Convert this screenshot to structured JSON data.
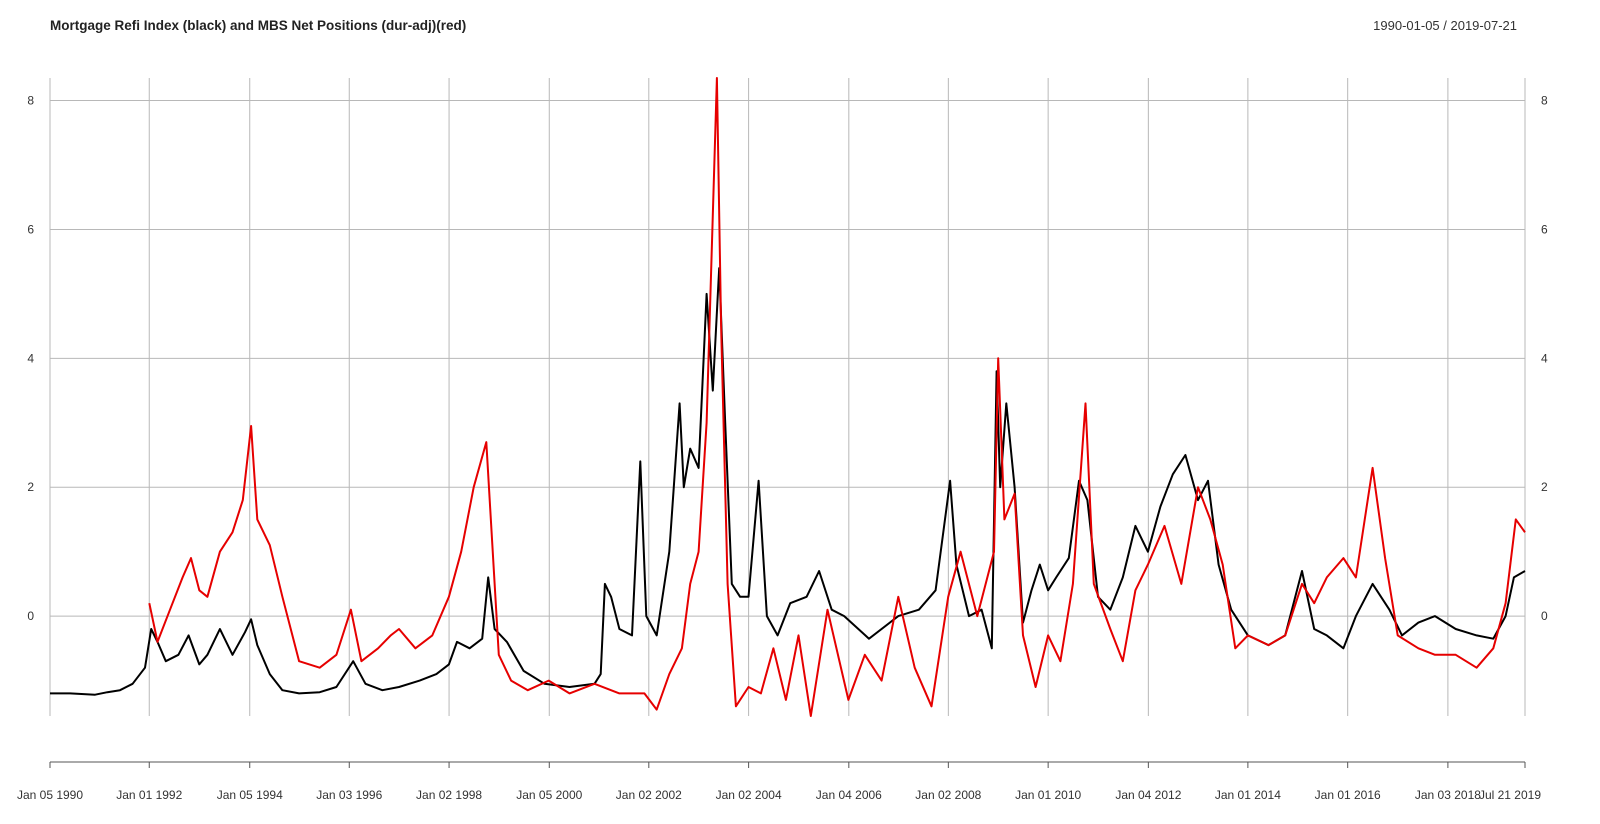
{
  "chart_data": {
    "type": "line",
    "title": "Mortgage Refi Index (black) and MBS Net Positions (dur-adj)(red)",
    "date_range_label": "1990-01-05 / 2019-07-21",
    "xlabel": "",
    "ylabel": "",
    "ylim": [
      -1.55,
      8.35
    ],
    "y_ticks": [
      0,
      2,
      4,
      6,
      8
    ],
    "y_tick_labels": [
      "0",
      "2",
      "4",
      "6",
      "8"
    ],
    "x_range": [
      "1990-01-05",
      "2019-07-21"
    ],
    "x_tick_dates": [
      "1990-01-05",
      "1992-01-01",
      "1994-01-05",
      "1996-01-03",
      "1998-01-02",
      "2000-01-05",
      "2002-01-02",
      "2004-01-02",
      "2006-01-04",
      "2008-01-02",
      "2010-01-01",
      "2012-01-04",
      "2014-01-01",
      "2016-01-01",
      "2018-01-03",
      "2019-07-21"
    ],
    "x_tick_labels": [
      "Jan 05 1990",
      "Jan 01 1992",
      "Jan 05 1994",
      "Jan 03 1996",
      "Jan 02 1998",
      "Jan 05 2000",
      "Jan 02 2002",
      "Jan 02 2004",
      "Jan 04 2006",
      "Jan 02 2008",
      "Jan 01 2010",
      "Jan 04 2012",
      "Jan 01 2014",
      "Jan 01 2016",
      "Jan 03 2018",
      "Jul 21 2019"
    ],
    "grid": true,
    "series": [
      {
        "name": "Mortgage Refi Index",
        "color": "#000000",
        "points": [
          [
            "1990-01-05",
            -1.2
          ],
          [
            "1990-06-01",
            -1.2
          ],
          [
            "1990-12-01",
            -1.22
          ],
          [
            "1991-03-01",
            -1.18
          ],
          [
            "1991-06-01",
            -1.15
          ],
          [
            "1991-09-01",
            -1.05
          ],
          [
            "1991-12-01",
            -0.8
          ],
          [
            "1992-01-15",
            -0.2
          ],
          [
            "1992-03-01",
            -0.4
          ],
          [
            "1992-05-01",
            -0.7
          ],
          [
            "1992-08-01",
            -0.6
          ],
          [
            "1992-10-15",
            -0.3
          ],
          [
            "1993-01-01",
            -0.75
          ],
          [
            "1993-03-01",
            -0.6
          ],
          [
            "1993-06-01",
            -0.2
          ],
          [
            "1993-09-01",
            -0.6
          ],
          [
            "1993-12-01",
            -0.25
          ],
          [
            "1994-01-15",
            -0.05
          ],
          [
            "1994-03-01",
            -0.45
          ],
          [
            "1994-06-01",
            -0.9
          ],
          [
            "1994-09-01",
            -1.15
          ],
          [
            "1995-01-01",
            -1.2
          ],
          [
            "1995-06-01",
            -1.18
          ],
          [
            "1995-10-01",
            -1.1
          ],
          [
            "1996-02-01",
            -0.7
          ],
          [
            "1996-05-01",
            -1.05
          ],
          [
            "1996-09-01",
            -1.15
          ],
          [
            "1997-01-01",
            -1.1
          ],
          [
            "1997-06-01",
            -1.0
          ],
          [
            "1997-10-01",
            -0.9
          ],
          [
            "1998-01-01",
            -0.75
          ],
          [
            "1998-03-01",
            -0.4
          ],
          [
            "1998-06-01",
            -0.5
          ],
          [
            "1998-09-01",
            -0.35
          ],
          [
            "1998-10-15",
            0.6
          ],
          [
            "1998-12-01",
            -0.2
          ],
          [
            "1999-03-01",
            -0.4
          ],
          [
            "1999-07-01",
            -0.85
          ],
          [
            "1999-12-01",
            -1.05
          ],
          [
            "2000-06-01",
            -1.1
          ],
          [
            "2000-12-01",
            -1.05
          ],
          [
            "2001-01-15",
            -0.9
          ],
          [
            "2001-02-15",
            0.5
          ],
          [
            "2001-04-01",
            0.3
          ],
          [
            "2001-06-01",
            -0.2
          ],
          [
            "2001-09-01",
            -0.3
          ],
          [
            "2001-11-01",
            2.4
          ],
          [
            "2001-12-15",
            0.0
          ],
          [
            "2002-03-01",
            -0.3
          ],
          [
            "2002-06-01",
            1.0
          ],
          [
            "2002-08-15",
            3.3
          ],
          [
            "2002-09-15",
            2.0
          ],
          [
            "2002-11-01",
            2.6
          ],
          [
            "2003-01-01",
            2.3
          ],
          [
            "2003-03-01",
            5.0
          ],
          [
            "2003-04-15",
            3.5
          ],
          [
            "2003-06-01",
            5.4
          ],
          [
            "2003-07-15",
            3.0
          ],
          [
            "2003-09-01",
            0.5
          ],
          [
            "2003-11-01",
            0.3
          ],
          [
            "2004-01-01",
            0.3
          ],
          [
            "2004-03-15",
            2.1
          ],
          [
            "2004-05-15",
            0.0
          ],
          [
            "2004-08-01",
            -0.3
          ],
          [
            "2004-11-01",
            0.2
          ],
          [
            "2005-03-01",
            0.3
          ],
          [
            "2005-06-01",
            0.7
          ],
          [
            "2005-09-01",
            0.1
          ],
          [
            "2005-12-01",
            0.0
          ],
          [
            "2006-06-01",
            -0.35
          ],
          [
            "2007-01-01",
            0.0
          ],
          [
            "2007-06-01",
            0.1
          ],
          [
            "2007-10-01",
            0.4
          ],
          [
            "2008-01-15",
            2.1
          ],
          [
            "2008-03-01",
            0.8
          ],
          [
            "2008-06-01",
            0.0
          ],
          [
            "2008-09-01",
            0.1
          ],
          [
            "2008-11-15",
            -0.5
          ],
          [
            "2008-12-20",
            3.8
          ],
          [
            "2009-01-15",
            2.0
          ],
          [
            "2009-03-01",
            3.3
          ],
          [
            "2009-05-01",
            2.0
          ],
          [
            "2009-07-01",
            -0.1
          ],
          [
            "2009-09-01",
            0.4
          ],
          [
            "2009-11-01",
            0.8
          ],
          [
            "2010-01-01",
            0.4
          ],
          [
            "2010-03-01",
            0.6
          ],
          [
            "2010-06-01",
            0.9
          ],
          [
            "2010-08-15",
            2.1
          ],
          [
            "2010-10-15",
            1.8
          ],
          [
            "2011-01-01",
            0.3
          ],
          [
            "2011-04-01",
            0.1
          ],
          [
            "2011-07-01",
            0.6
          ],
          [
            "2011-10-01",
            1.4
          ],
          [
            "2012-01-01",
            1.0
          ],
          [
            "2012-04-01",
            1.7
          ],
          [
            "2012-07-01",
            2.2
          ],
          [
            "2012-10-01",
            2.5
          ],
          [
            "2013-01-01",
            1.8
          ],
          [
            "2013-03-15",
            2.1
          ],
          [
            "2013-06-01",
            0.8
          ],
          [
            "2013-09-01",
            0.1
          ],
          [
            "2014-01-01",
            -0.3
          ],
          [
            "2014-06-01",
            -0.45
          ],
          [
            "2014-10-01",
            -0.3
          ],
          [
            "2015-02-01",
            0.7
          ],
          [
            "2015-05-01",
            -0.2
          ],
          [
            "2015-08-01",
            -0.3
          ],
          [
            "2015-12-01",
            -0.5
          ],
          [
            "2016-03-01",
            0.0
          ],
          [
            "2016-07-01",
            0.5
          ],
          [
            "2016-11-01",
            0.1
          ],
          [
            "2017-02-01",
            -0.3
          ],
          [
            "2017-06-01",
            -0.1
          ],
          [
            "2017-10-01",
            0.0
          ],
          [
            "2018-03-01",
            -0.2
          ],
          [
            "2018-08-01",
            -0.3
          ],
          [
            "2018-12-01",
            -0.35
          ],
          [
            "2019-03-01",
            0.0
          ],
          [
            "2019-05-01",
            0.6
          ],
          [
            "2019-07-21",
            0.7
          ]
        ]
      },
      {
        "name": "MBS Net Positions (dur-adj)",
        "color": "#e60000",
        "points": [
          [
            "1992-01-01",
            0.2
          ],
          [
            "1992-03-01",
            -0.4
          ],
          [
            "1992-06-01",
            0.1
          ],
          [
            "1992-09-01",
            0.6
          ],
          [
            "1992-11-01",
            0.9
          ],
          [
            "1993-01-01",
            0.4
          ],
          [
            "1993-03-01",
            0.3
          ],
          [
            "1993-06-01",
            1.0
          ],
          [
            "1993-09-01",
            1.3
          ],
          [
            "1993-11-15",
            1.8
          ],
          [
            "1994-01-15",
            2.95
          ],
          [
            "1994-03-01",
            1.5
          ],
          [
            "1994-06-01",
            1.1
          ],
          [
            "1994-09-01",
            0.3
          ],
          [
            "1995-01-01",
            -0.7
          ],
          [
            "1995-06-01",
            -0.8
          ],
          [
            "1995-10-01",
            -0.6
          ],
          [
            "1996-01-15",
            0.1
          ],
          [
            "1996-04-01",
            -0.7
          ],
          [
            "1996-08-01",
            -0.5
          ],
          [
            "1996-11-01",
            -0.3
          ],
          [
            "1997-01-01",
            -0.2
          ],
          [
            "1997-05-01",
            -0.5
          ],
          [
            "1997-09-01",
            -0.3
          ],
          [
            "1998-01-01",
            0.3
          ],
          [
            "1998-04-01",
            1.0
          ],
          [
            "1998-07-01",
            2.0
          ],
          [
            "1998-10-01",
            2.7
          ],
          [
            "1999-01-01",
            -0.6
          ],
          [
            "1999-04-01",
            -1.0
          ],
          [
            "1999-08-01",
            -1.15
          ],
          [
            "2000-01-01",
            -1.0
          ],
          [
            "2000-06-01",
            -1.2
          ],
          [
            "2000-12-01",
            -1.05
          ],
          [
            "2001-06-01",
            -1.2
          ],
          [
            "2001-12-01",
            -1.2
          ],
          [
            "2002-03-01",
            -1.45
          ],
          [
            "2002-06-01",
            -0.9
          ],
          [
            "2002-09-01",
            -0.5
          ],
          [
            "2002-11-01",
            0.5
          ],
          [
            "2003-01-01",
            1.0
          ],
          [
            "2003-03-01",
            3.0
          ],
          [
            "2003-05-15",
            8.35
          ],
          [
            "2003-06-15",
            4.5
          ],
          [
            "2003-08-01",
            0.5
          ],
          [
            "2003-10-01",
            -1.4
          ],
          [
            "2004-01-01",
            -1.1
          ],
          [
            "2004-04-01",
            -1.2
          ],
          [
            "2004-07-01",
            -0.5
          ],
          [
            "2004-10-01",
            -1.3
          ],
          [
            "2005-01-01",
            -0.3
          ],
          [
            "2005-04-01",
            -1.55
          ],
          [
            "2005-08-01",
            0.1
          ],
          [
            "2006-01-01",
            -1.3
          ],
          [
            "2006-05-01",
            -0.6
          ],
          [
            "2006-09-01",
            -1.0
          ],
          [
            "2007-01-01",
            0.3
          ],
          [
            "2007-05-01",
            -0.8
          ],
          [
            "2007-09-01",
            -1.4
          ],
          [
            "2008-01-01",
            0.3
          ],
          [
            "2008-04-01",
            1.0
          ],
          [
            "2008-08-01",
            0.0
          ],
          [
            "2008-12-01",
            1.0
          ],
          [
            "2009-01-01",
            4.0
          ],
          [
            "2009-02-15",
            1.5
          ],
          [
            "2009-05-01",
            1.9
          ],
          [
            "2009-07-01",
            -0.3
          ],
          [
            "2009-10-01",
            -1.1
          ],
          [
            "2010-01-01",
            -0.3
          ],
          [
            "2010-04-01",
            -0.7
          ],
          [
            "2010-07-01",
            0.5
          ],
          [
            "2010-10-01",
            3.3
          ],
          [
            "2010-12-01",
            0.5
          ],
          [
            "2011-04-01",
            -0.2
          ],
          [
            "2011-07-01",
            -0.7
          ],
          [
            "2011-10-01",
            0.4
          ],
          [
            "2012-01-01",
            0.8
          ],
          [
            "2012-05-01",
            1.4
          ],
          [
            "2012-09-01",
            0.5
          ],
          [
            "2013-01-01",
            2.0
          ],
          [
            "2013-04-01",
            1.5
          ],
          [
            "2013-07-01",
            0.8
          ],
          [
            "2013-10-01",
            -0.5
          ],
          [
            "2014-01-01",
            -0.3
          ],
          [
            "2014-06-01",
            -0.45
          ],
          [
            "2014-10-01",
            -0.3
          ],
          [
            "2015-02-01",
            0.5
          ],
          [
            "2015-05-01",
            0.2
          ],
          [
            "2015-08-01",
            0.6
          ],
          [
            "2015-12-01",
            0.9
          ],
          [
            "2016-03-01",
            0.6
          ],
          [
            "2016-07-01",
            2.3
          ],
          [
            "2016-10-01",
            0.9
          ],
          [
            "2017-01-01",
            -0.3
          ],
          [
            "2017-06-01",
            -0.5
          ],
          [
            "2017-10-01",
            -0.6
          ],
          [
            "2018-03-01",
            -0.6
          ],
          [
            "2018-08-01",
            -0.8
          ],
          [
            "2018-12-01",
            -0.5
          ],
          [
            "2019-03-01",
            0.2
          ],
          [
            "2019-05-15",
            1.5
          ],
          [
            "2019-07-21",
            1.3
          ]
        ]
      }
    ]
  }
}
